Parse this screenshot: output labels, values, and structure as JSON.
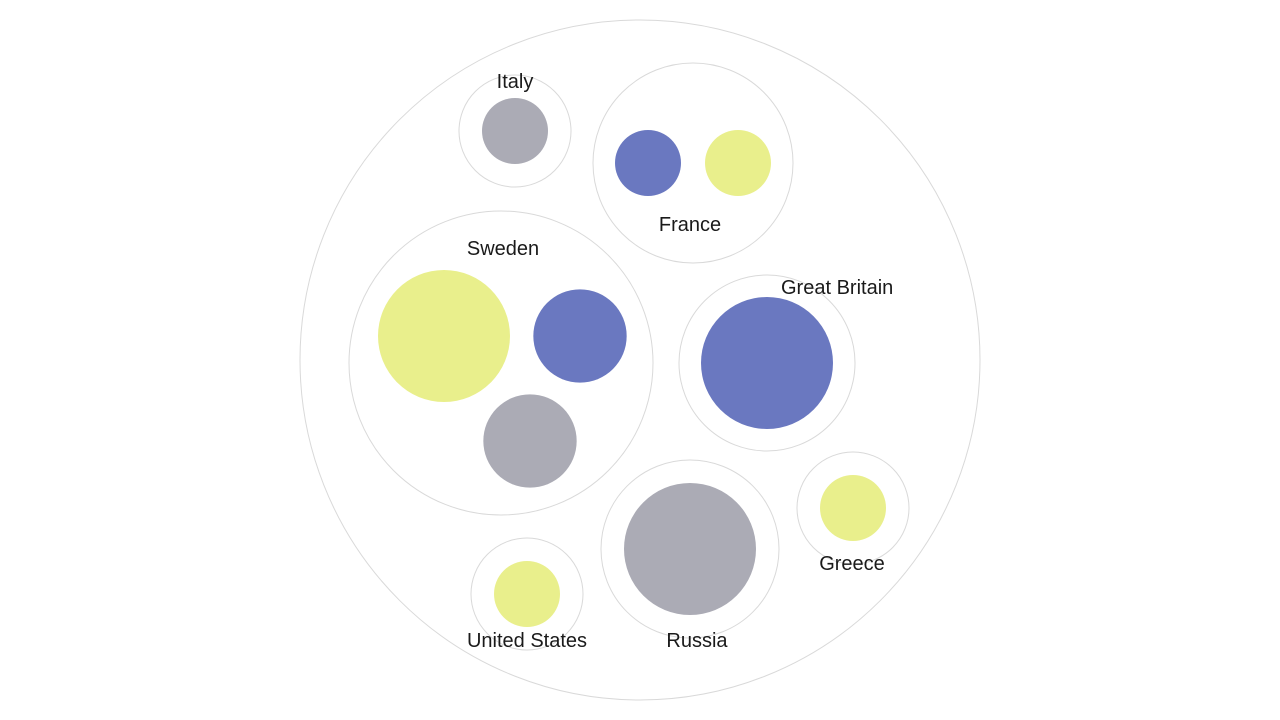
{
  "colors": {
    "blue": "#6a78c0",
    "yellow": "#e9ef8c",
    "gray": "#ababb5",
    "ring": "#d9d9d9"
  },
  "chart_data": {
    "type": "packed-bubble",
    "groups": [
      {
        "name": "Italy",
        "bubbles": [
          {
            "color": "gray",
            "value": 1
          }
        ]
      },
      {
        "name": "France",
        "bubbles": [
          {
            "color": "blue",
            "value": 1
          },
          {
            "color": "yellow",
            "value": 1
          }
        ]
      },
      {
        "name": "Sweden",
        "bubbles": [
          {
            "color": "yellow",
            "value": 4
          },
          {
            "color": "blue",
            "value": 2
          },
          {
            "color": "gray",
            "value": 2
          }
        ]
      },
      {
        "name": "Great Britain",
        "bubbles": [
          {
            "color": "blue",
            "value": 4
          }
        ]
      },
      {
        "name": "Greece",
        "bubbles": [
          {
            "color": "yellow",
            "value": 1
          }
        ]
      },
      {
        "name": "United States",
        "bubbles": [
          {
            "color": "yellow",
            "value": 1
          }
        ]
      },
      {
        "name": "Russia",
        "bubbles": [
          {
            "color": "gray",
            "value": 4
          }
        ]
      }
    ]
  }
}
